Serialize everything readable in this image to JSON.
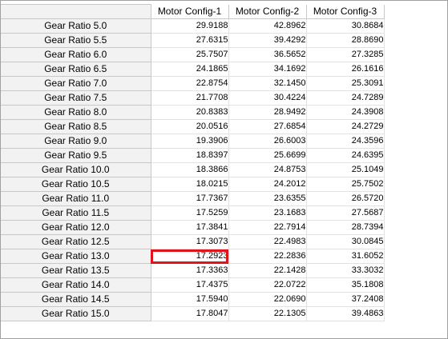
{
  "table": {
    "columns": [
      "",
      "Motor Config-1",
      "Motor Config-2",
      "Motor Config-3"
    ],
    "highlight": {
      "row": 16,
      "col": 0
    },
    "highlight_color": "#e0141c",
    "rows": [
      {
        "label": "Gear Ratio 5.0",
        "values": [
          "29.9188",
          "42.8962",
          "30.8684"
        ]
      },
      {
        "label": "Gear Ratio 5.5",
        "values": [
          "27.6315",
          "39.4292",
          "28.8690"
        ]
      },
      {
        "label": "Gear Ratio 6.0",
        "values": [
          "25.7507",
          "36.5652",
          "27.3285"
        ]
      },
      {
        "label": "Gear Ratio 6.5",
        "values": [
          "24.1865",
          "34.1692",
          "26.1616"
        ]
      },
      {
        "label": "Gear Ratio 7.0",
        "values": [
          "22.8754",
          "32.1450",
          "25.3091"
        ]
      },
      {
        "label": "Gear Ratio 7.5",
        "values": [
          "21.7708",
          "30.4224",
          "24.7289"
        ]
      },
      {
        "label": "Gear Ratio 8.0",
        "values": [
          "20.8383",
          "28.9492",
          "24.3908"
        ]
      },
      {
        "label": "Gear Ratio 8.5",
        "values": [
          "20.0516",
          "27.6854",
          "24.2729"
        ]
      },
      {
        "label": "Gear Ratio 9.0",
        "values": [
          "19.3906",
          "26.6003",
          "24.3596"
        ]
      },
      {
        "label": "Gear Ratio 9.5",
        "values": [
          "18.8397",
          "25.6699",
          "24.6395"
        ]
      },
      {
        "label": "Gear Ratio 10.0",
        "values": [
          "18.3866",
          "24.8753",
          "25.1049"
        ]
      },
      {
        "label": "Gear Ratio 10.5",
        "values": [
          "18.0215",
          "24.2012",
          "25.7502"
        ]
      },
      {
        "label": "Gear Ratio 11.0",
        "values": [
          "17.7367",
          "23.6355",
          "26.5720"
        ]
      },
      {
        "label": "Gear Ratio 11.5",
        "values": [
          "17.5259",
          "23.1683",
          "27.5687"
        ]
      },
      {
        "label": "Gear Ratio 12.0",
        "values": [
          "17.3841",
          "22.7914",
          "28.7394"
        ]
      },
      {
        "label": "Gear Ratio 12.5",
        "values": [
          "17.3073",
          "22.4983",
          "30.0845"
        ]
      },
      {
        "label": "Gear Ratio 13.0",
        "values": [
          "17.2923",
          "22.2836",
          "31.6052"
        ]
      },
      {
        "label": "Gear Ratio 13.5",
        "values": [
          "17.3363",
          "22.1428",
          "33.3032"
        ]
      },
      {
        "label": "Gear Ratio 14.0",
        "values": [
          "17.4375",
          "22.0722",
          "35.1808"
        ]
      },
      {
        "label": "Gear Ratio 14.5",
        "values": [
          "17.5940",
          "22.0690",
          "37.2408"
        ]
      },
      {
        "label": "Gear Ratio 15.0",
        "values": [
          "17.8047",
          "22.1305",
          "39.4863"
        ]
      }
    ]
  }
}
